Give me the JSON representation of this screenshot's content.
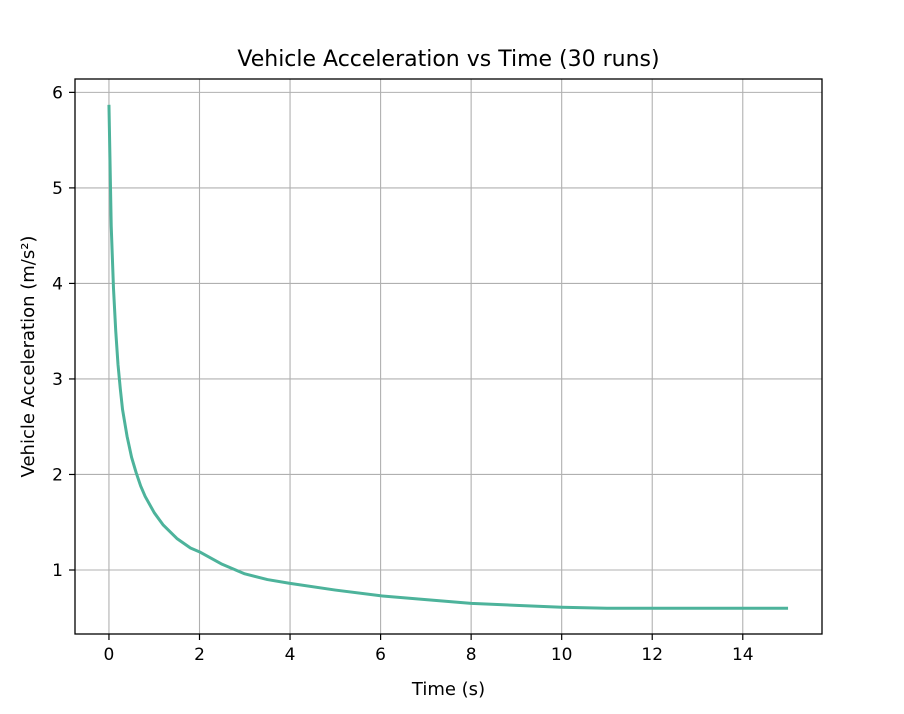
{
  "chart_data": {
    "type": "line",
    "title": "Vehicle Acceleration vs Time (30 runs)",
    "xlabel": "Time (s)",
    "ylabel": "Vehicle Acceleration (m/s²)",
    "xlim": [
      -0.75,
      15.75
    ],
    "ylim": [
      0.33,
      6.14
    ],
    "xticks": [
      0,
      2,
      4,
      6,
      8,
      10,
      12,
      14
    ],
    "yticks": [
      1,
      2,
      3,
      4,
      5,
      6
    ],
    "grid": true,
    "legend": "none",
    "series_count_note": "30 overlapping runs",
    "series": [
      {
        "color": "#4db39b",
        "x": [
          0,
          0.05,
          0.1,
          0.15,
          0.2,
          0.25,
          0.3,
          0.4,
          0.5,
          0.6,
          0.7,
          0.8,
          1.0,
          1.2,
          1.5,
          1.8,
          2.0,
          2.5,
          3.0,
          3.5,
          4.0,
          5.0,
          6.0,
          7.0,
          8.0,
          9.0,
          10.0,
          11.0,
          12.0,
          13.0,
          14.0,
          15.0
        ],
        "values": [
          5.87,
          4.6,
          3.95,
          3.5,
          3.15,
          2.9,
          2.68,
          2.4,
          2.18,
          2.02,
          1.88,
          1.77,
          1.6,
          1.47,
          1.33,
          1.23,
          1.19,
          1.06,
          0.96,
          0.9,
          0.86,
          0.79,
          0.73,
          0.69,
          0.65,
          0.63,
          0.61,
          0.6,
          0.6,
          0.6,
          0.6,
          0.6
        ]
      }
    ]
  },
  "colors": {
    "line": "#4db39b",
    "grid": "#b0b0b0",
    "axis": "#000000"
  }
}
